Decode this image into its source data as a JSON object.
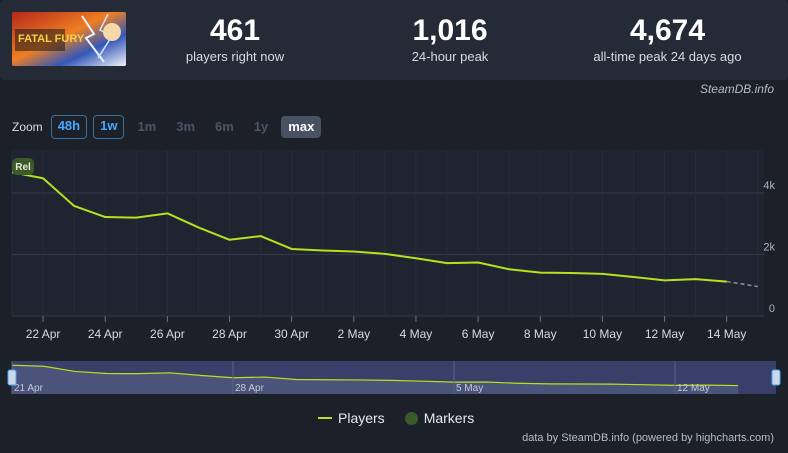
{
  "stats": [
    {
      "value": "461",
      "label": "players right now"
    },
    {
      "value": "1,016",
      "label": "24-hour peak"
    },
    {
      "value": "4,674",
      "label": "all-time peak 24 days ago"
    }
  ],
  "game_art": {
    "title": "FATAL FURY"
  },
  "credit_top": "SteamDB.info",
  "zoom": {
    "label": "Zoom",
    "buttons": [
      "48h",
      "1w",
      "1m",
      "3m",
      "6m",
      "1y",
      "max"
    ]
  },
  "legend": {
    "players": "Players",
    "markers": "Markers"
  },
  "credit_bottom": "data by SteamDB.info (powered by highcharts.com)",
  "colors": {
    "line": "#b8e01c",
    "marker": "#3a5a2a"
  },
  "chart_data": {
    "type": "line",
    "xlabel": "",
    "ylabel": "",
    "ylim": [
      0,
      5400
    ],
    "yticks": [
      0,
      2000,
      4000
    ],
    "ytick_labels": [
      "0",
      "2k",
      "4k"
    ],
    "xtick_labels": [
      "22 Apr",
      "24 Apr",
      "26 Apr",
      "28 Apr",
      "30 Apr",
      "2 May",
      "4 May",
      "6 May",
      "8 May",
      "10 May",
      "12 May",
      "14 May"
    ],
    "xtick_days": [
      22,
      24,
      26,
      28,
      30,
      32,
      34,
      36,
      38,
      40,
      42,
      44
    ],
    "grid": true,
    "legend_position": "bottom-center",
    "marker": {
      "label": "Rel",
      "day": 21
    },
    "series": [
      {
        "name": "Players",
        "x": [
          21,
          22,
          23,
          24,
          25,
          26,
          27,
          28,
          29,
          30,
          31,
          32,
          33,
          34,
          35,
          36,
          37,
          38,
          39,
          40,
          41,
          42,
          43,
          44
        ],
        "y": [
          4674,
          4480,
          3580,
          3220,
          3200,
          3340,
          2880,
          2480,
          2600,
          2180,
          2130,
          2100,
          2020,
          1880,
          1720,
          1740,
          1520,
          1410,
          1400,
          1370,
          1270,
          1160,
          1200,
          1120
        ]
      }
    ],
    "projection": {
      "x": [
        44,
        45
      ],
      "y": [
        1120,
        960
      ]
    },
    "navigator_labels": [
      "21 Apr",
      "28 Apr",
      "5 May",
      "12 May"
    ],
    "navigator_days": [
      21,
      28,
      35,
      42
    ]
  }
}
